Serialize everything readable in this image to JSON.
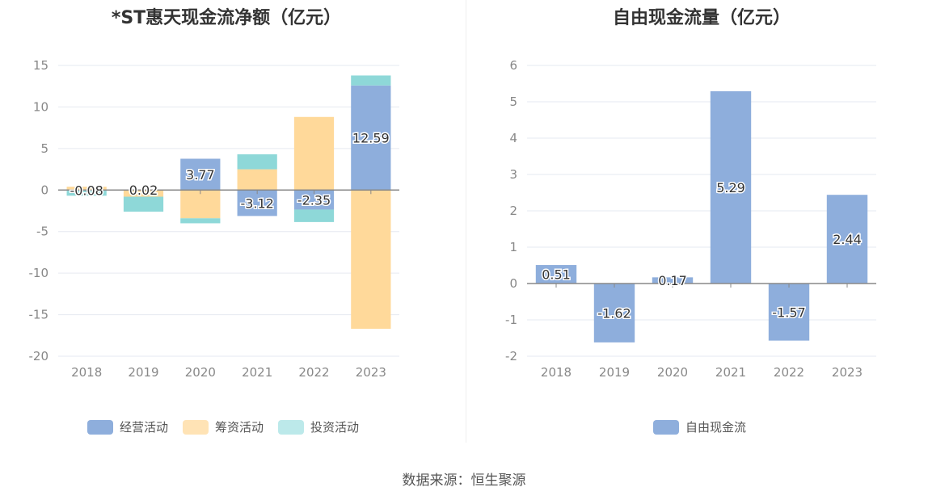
{
  "source_text": "数据来源：恒生聚源",
  "colors": {
    "operating": "#8eaedc",
    "financing": "#ffd99a",
    "investing": "#8ed8d8",
    "fcf": "#8eaedc"
  },
  "chart_data": [
    {
      "type": "bar",
      "title": "*ST惠天现金流净额（亿元）",
      "categories": [
        "2018",
        "2019",
        "2020",
        "2021",
        "2022",
        "2023"
      ],
      "ylim": [
        -20,
        15
      ],
      "yticks": [
        "15",
        "10",
        "5",
        "0",
        "-5",
        "-10",
        "-15",
        "-20"
      ],
      "stacked": true,
      "series": [
        {
          "name": "经营活动",
          "values": [
            -0.08,
            0.02,
            3.77,
            -3.12,
            -2.35,
            12.59
          ],
          "labels": [
            "-0.08",
            "0.02",
            "3.77",
            "-3.12",
            "-2.35",
            "12.59"
          ]
        },
        {
          "name": "筹资活动",
          "values": [
            0.4,
            -0.8,
            -3.4,
            2.5,
            8.8,
            -16.7
          ]
        },
        {
          "name": "投资活动",
          "values": [
            -0.6,
            -1.8,
            -0.6,
            1.8,
            -1.5,
            1.2
          ]
        }
      ],
      "legend": "bottom"
    },
    {
      "type": "bar",
      "title": "自由现金流量（亿元）",
      "categories": [
        "2018",
        "2019",
        "2020",
        "2021",
        "2022",
        "2023"
      ],
      "ylim": [
        -2,
        6
      ],
      "yticks": [
        "6",
        "5",
        "4",
        "3",
        "2",
        "1",
        "0",
        "-1",
        "-2"
      ],
      "series": [
        {
          "name": "自由现金流",
          "values": [
            0.51,
            -1.62,
            0.17,
            5.29,
            -1.57,
            2.44
          ],
          "labels": [
            "0.51",
            "-1.62",
            "0.17",
            "5.29",
            "-1.57",
            "2.44"
          ]
        }
      ],
      "legend": "bottom"
    }
  ]
}
